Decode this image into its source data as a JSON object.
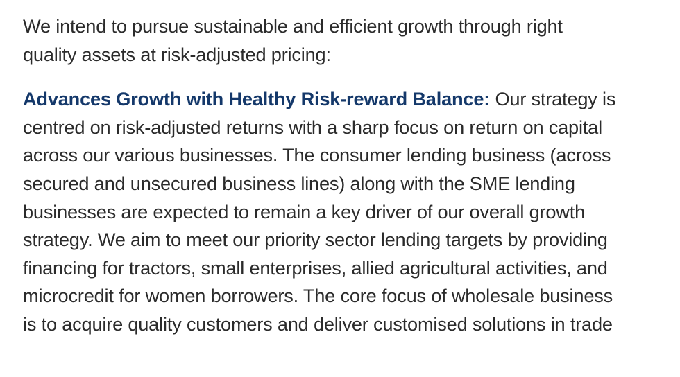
{
  "intro": {
    "lines": [
      "We intend to pursue sustainable and efficient growth through right",
      "quality assets at risk-adjusted pricing:"
    ]
  },
  "section": {
    "heading": "Advances Growth with Healthy Risk-reward Balance:",
    "first_line_rest": " Our strategy is",
    "lines": [
      "centred on risk-adjusted returns with a sharp focus on return on capital",
      "across our various businesses. The consumer lending business (across",
      "secured and unsecured business lines) along with the SME lending",
      "businesses are expected to remain a key driver of our overall growth",
      "strategy. We aim to meet our priority sector lending targets by providing",
      "financing for tractors, small enterprises, allied agricultural activities, and",
      "microcredit for women borrowers. The core focus of wholesale business",
      "is to acquire quality customers and deliver customised solutions in trade"
    ]
  },
  "colors": {
    "body_text": "#2b2b2b",
    "heading_text": "#14386a",
    "background": "#ffffff"
  }
}
